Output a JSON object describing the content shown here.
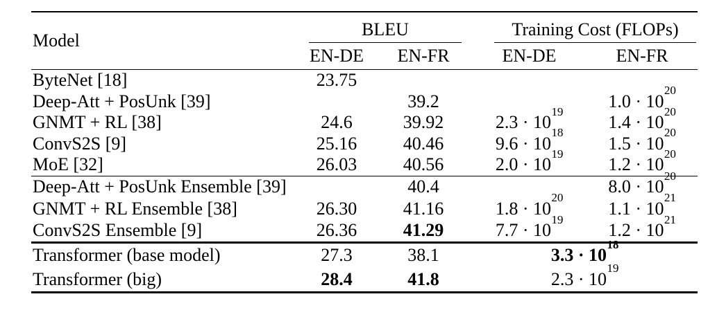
{
  "colors": {
    "background": "#ffffff",
    "text": "#000000",
    "rule": "#000000"
  },
  "table": {
    "header": {
      "model_label": "Model",
      "groups": [
        {
          "label": "BLEU",
          "subcols": [
            "EN-DE",
            "EN-FR"
          ]
        },
        {
          "label": "Training Cost (FLOPs)",
          "subcols": [
            "EN-DE",
            "EN-FR"
          ]
        }
      ]
    },
    "sections": [
      {
        "name": "single-models",
        "rows": [
          {
            "model": "ByteNet [18]",
            "cells": [
              {
                "v": "23.75"
              },
              {
                "v": ""
              },
              {
                "v": ""
              },
              {
                "v": ""
              }
            ]
          },
          {
            "model": "Deep-Att + PosUnk [39]",
            "cells": [
              {
                "v": ""
              },
              {
                "v": "39.2"
              },
              {
                "v": ""
              },
              {
                "v": "1.0 · 10^20"
              }
            ]
          },
          {
            "model": "GNMT + RL [38]",
            "cells": [
              {
                "v": "24.6"
              },
              {
                "v": "39.92"
              },
              {
                "v": "2.3 · 10^19"
              },
              {
                "v": "1.4 · 10^20"
              }
            ]
          },
          {
            "model": "ConvS2S [9]",
            "cells": [
              {
                "v": "25.16"
              },
              {
                "v": "40.46"
              },
              {
                "v": "9.6 · 10^18"
              },
              {
                "v": "1.5 · 10^20"
              }
            ]
          },
          {
            "model": "MoE [32]",
            "cells": [
              {
                "v": "26.03"
              },
              {
                "v": "40.56"
              },
              {
                "v": "2.0 · 10^19"
              },
              {
                "v": "1.2 · 10^20"
              }
            ]
          }
        ]
      },
      {
        "name": "ensembles",
        "rows": [
          {
            "model": "Deep-Att + PosUnk Ensemble [39]",
            "cells": [
              {
                "v": ""
              },
              {
                "v": "40.4"
              },
              {
                "v": ""
              },
              {
                "v": "8.0 · 10^20"
              }
            ]
          },
          {
            "model": "GNMT + RL Ensemble [38]",
            "cells": [
              {
                "v": "26.30"
              },
              {
                "v": "41.16"
              },
              {
                "v": "1.8 · 10^20"
              },
              {
                "v": "1.1 · 10^21"
              }
            ]
          },
          {
            "model": "ConvS2S Ensemble [9]",
            "cells": [
              {
                "v": "26.36"
              },
              {
                "v": "41.29",
                "bold": true
              },
              {
                "v": "7.7 · 10^19"
              },
              {
                "v": "1.2 · 10^21"
              }
            ]
          }
        ]
      },
      {
        "name": "transformers",
        "rows": [
          {
            "model": "Transformer (base model)",
            "cells": [
              {
                "v": "27.3"
              },
              {
                "v": "38.1"
              },
              {
                "v": "3.3 · 10^18",
                "bold": true,
                "span": 2
              }
            ]
          },
          {
            "model": "Transformer (big)",
            "cells": [
              {
                "v": "28.4",
                "bold": true
              },
              {
                "v": "41.8",
                "bold": true
              },
              {
                "v": "2.3 · 10^19",
                "span": 2
              }
            ]
          }
        ]
      }
    ]
  }
}
